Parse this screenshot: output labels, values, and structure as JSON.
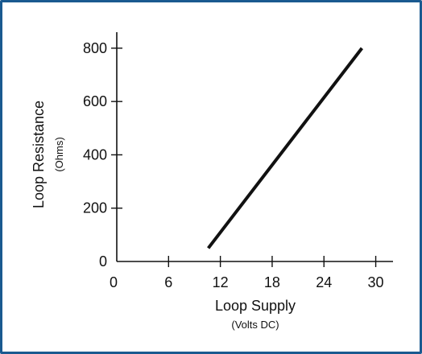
{
  "chart_data": {
    "type": "line",
    "title": "",
    "xlabel": "Loop Supply",
    "xlabel_unit": "(Volts DC)",
    "ylabel": "Loop Resistance",
    "ylabel_unit": "(Ohms)",
    "xlim": [
      0,
      32
    ],
    "ylim": [
      0,
      860
    ],
    "x_ticks": [
      0,
      6,
      12,
      18,
      24,
      30
    ],
    "x_tick_labels": [
      "0",
      "6",
      "12",
      "18",
      "24",
      "30"
    ],
    "y_ticks": [
      0,
      200,
      400,
      600,
      800
    ],
    "y_tick_labels": [
      "0",
      "200",
      "400",
      "600",
      "800"
    ],
    "grid": false,
    "series": [
      {
        "x": [
          10.6,
          28.4
        ],
        "y": [
          50,
          800
        ]
      }
    ],
    "colors": {
      "frame": "#1a5a90",
      "line": "#111111"
    }
  }
}
